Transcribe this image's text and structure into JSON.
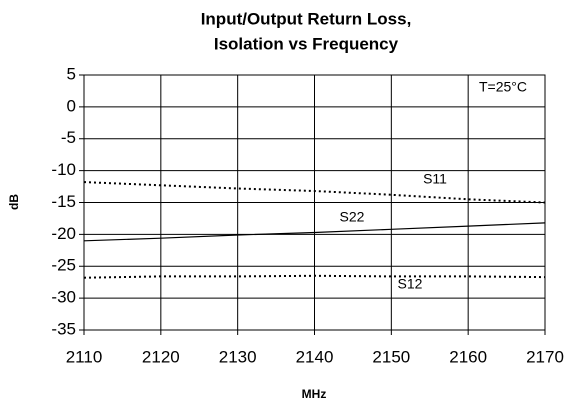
{
  "chart_data": {
    "type": "line",
    "title": [
      "Input/Output Return Loss,",
      "Isolation vs Frequency"
    ],
    "x_label": "MHz",
    "y_label": "dB",
    "annotation": "T=25°C",
    "x": [
      2110,
      2120,
      2130,
      2140,
      2150,
      2160,
      2170
    ],
    "series": [
      {
        "name": "S11",
        "color": "#000000",
        "style": "dotted",
        "values": [
          -11.8,
          -12.3,
          -12.8,
          -13.2,
          -13.8,
          -14.5,
          -15.0
        ]
      },
      {
        "name": "S22",
        "color": "#000000",
        "style": "solid",
        "values": [
          -21.0,
          -20.6,
          -20.1,
          -19.7,
          -19.2,
          -18.7,
          -18.2
        ]
      },
      {
        "name": "S12",
        "color": "#000000",
        "style": "dotted",
        "values": [
          -26.8,
          -26.6,
          -26.6,
          -26.5,
          -26.6,
          -26.6,
          -26.7
        ]
      }
    ],
    "xlim": [
      2110,
      2170
    ],
    "xticks": [
      2110,
      2120,
      2130,
      2140,
      2150,
      2160,
      2170
    ],
    "ylim": [
      -35,
      5
    ],
    "yticks": [
      5,
      0,
      -5,
      -10,
      -15,
      -20,
      -25,
      -30,
      -35
    ],
    "grid": true
  }
}
